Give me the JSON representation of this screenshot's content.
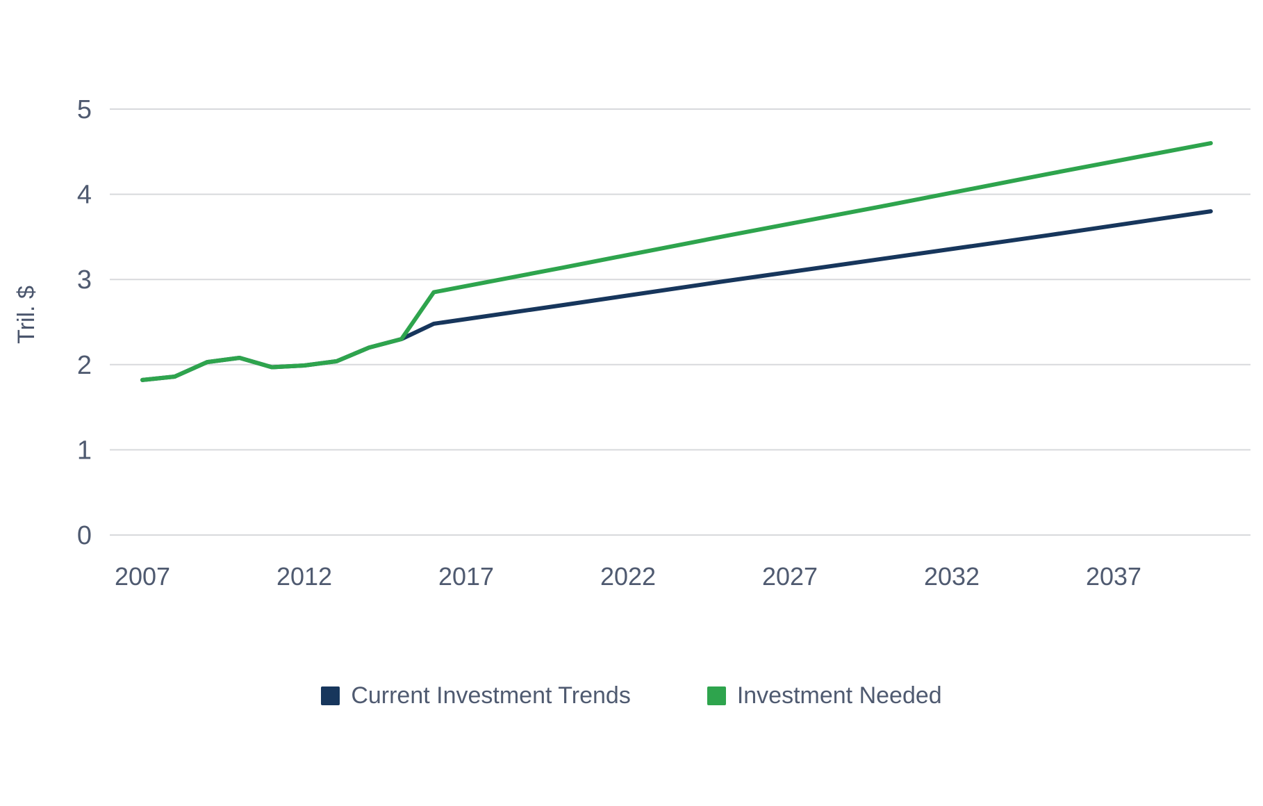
{
  "chart_data": {
    "type": "line",
    "title": "",
    "xlabel": "",
    "ylabel": "Tril. $",
    "x_ticks": [
      2007,
      2012,
      2017,
      2022,
      2027,
      2032,
      2037
    ],
    "y_ticks": [
      0,
      1,
      2,
      3,
      4,
      5
    ],
    "xlim": [
      2007,
      2040
    ],
    "ylim": [
      0,
      5.4
    ],
    "grid": "horizontal-only",
    "legend_position": "bottom-center",
    "background_color": "#ffffff",
    "grid_color": "#d8d9dc",
    "axis_text_color": "#4f5a70",
    "x": [
      2007,
      2008,
      2009,
      2010,
      2011,
      2012,
      2013,
      2014,
      2015,
      2016,
      2020,
      2025,
      2030,
      2035,
      2040
    ],
    "series": [
      {
        "name": "Current Investment Trends",
        "color": "#17365c",
        "values": [
          1.82,
          1.86,
          2.03,
          2.08,
          1.97,
          1.99,
          2.04,
          2.2,
          2.3,
          2.48,
          2.7,
          2.98,
          3.25,
          3.52,
          3.8
        ]
      },
      {
        "name": "Investment Needed",
        "color": "#2ea44d",
        "values": [
          1.82,
          1.86,
          2.03,
          2.08,
          1.97,
          1.99,
          2.04,
          2.2,
          2.3,
          2.85,
          3.14,
          3.51,
          3.87,
          4.24,
          4.6
        ]
      }
    ]
  }
}
